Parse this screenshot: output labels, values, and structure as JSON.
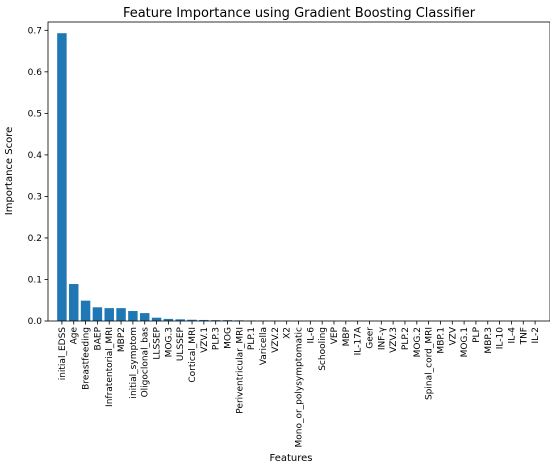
{
  "chart_data": {
    "type": "bar",
    "title": "Feature Importance using Gradient Boosting Classifier",
    "xlabel": "Features",
    "ylabel": "Importance Score",
    "ylim": [
      0,
      0.72
    ],
    "yticks": [
      "0.0",
      "0.1",
      "0.2",
      "0.3",
      "0.4",
      "0.5",
      "0.6",
      "0.7"
    ],
    "grid": false,
    "bar_color": "#1f77b4",
    "categories": [
      "initial_EDSS",
      "Age",
      "Breastfeeding",
      "BAEP",
      "Infratentorial_MRI",
      "MBP2",
      "initial_symptom",
      "Oligoclonal_bas",
      "LLSSEP",
      "MOG.3",
      "ULSSEP",
      "Cortical_MRI",
      "VZV.1",
      "PLP.3",
      "MOG",
      "Periventricular_MRI",
      "PLP.1",
      "Varicella",
      "VZV.2",
      "X2",
      "Mono_or_polysymptomatic",
      "IL-6",
      "Schooling",
      "VEP",
      "MBP",
      "IL-17A",
      "Geer",
      "INF-γ",
      "VZV.3",
      "PLP.2",
      "MOG.2",
      "Spinal_cord_MRI",
      "MBP.1",
      "VZV",
      "MOG.1",
      "PLP",
      "MBP.3",
      "IL-10",
      "IL-4",
      "TNF",
      "IL-2"
    ],
    "values": [
      0.693,
      0.089,
      0.049,
      0.033,
      0.031,
      0.031,
      0.024,
      0.019,
      0.008,
      0.005,
      0.004,
      0.003,
      0.0025,
      0.002,
      0.002,
      0.0015,
      0.0012,
      0.001,
      0.0008,
      0.0006,
      0.0005,
      0.0004,
      0.0003,
      0.0003,
      0.0002,
      0.0002,
      0.0002,
      0.0001,
      0.0001,
      0.0001,
      0.0001,
      0.0001,
      5e-05,
      5e-05,
      5e-05,
      4e-05,
      3e-05,
      3e-05,
      2e-05,
      2e-05,
      1e-05
    ]
  }
}
